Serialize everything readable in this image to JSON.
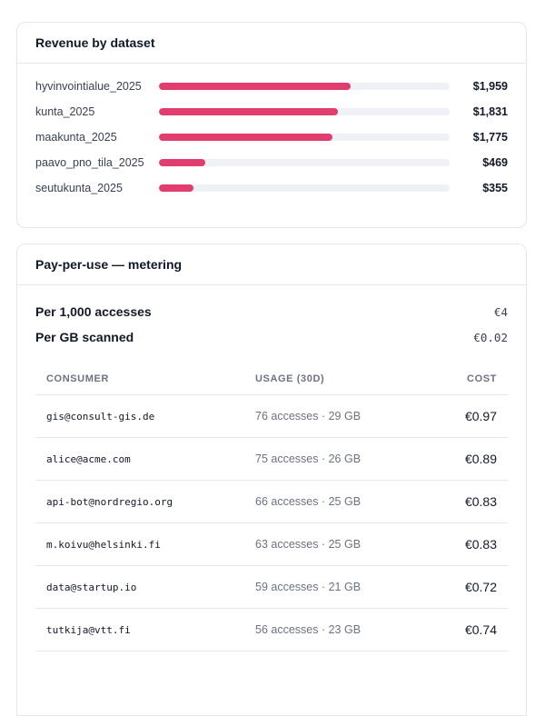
{
  "revenue": {
    "title": "Revenue by dataset",
    "rows": [
      {
        "label": "hyvinvointialue_2025",
        "value": "$1,959",
        "fill_fraction": 0.66
      },
      {
        "label": "kunta_2025",
        "value": "$1,831",
        "fill_fraction": 0.617
      },
      {
        "label": "maakunta_2025",
        "value": "$1,775",
        "fill_fraction": 0.598
      },
      {
        "label": "paavo_pno_tila_2025",
        "value": "$469",
        "fill_fraction": 0.158
      },
      {
        "label": "seutukunta_2025",
        "value": "$355",
        "fill_fraction": 0.12
      }
    ],
    "bar_color": "#e23d6f"
  },
  "metering": {
    "title": "Pay-per-use — metering",
    "prices": [
      {
        "label": "Per 1,000 accesses",
        "value": "€4"
      },
      {
        "label": "Per GB scanned",
        "value": "€0.02"
      }
    ],
    "table": {
      "headers": {
        "consumer": "CONSUMER",
        "usage": "USAGE (30D)",
        "cost": "COST"
      },
      "rows": [
        {
          "consumer": "gis@consult-gis.de",
          "usage": "76 accesses · 29 GB",
          "cost": "€0.97"
        },
        {
          "consumer": "alice@acme.com",
          "usage": "75 accesses · 26 GB",
          "cost": "€0.89"
        },
        {
          "consumer": "api-bot@nordregio.org",
          "usage": "66 accesses · 25 GB",
          "cost": "€0.83"
        },
        {
          "consumer": "m.koivu@helsinki.fi",
          "usage": "63 accesses · 25 GB",
          "cost": "€0.83"
        },
        {
          "consumer": "data@startup.io",
          "usage": "59 accesses · 21 GB",
          "cost": "€0.72"
        },
        {
          "consumer": "tutkija@vtt.fi",
          "usage": "56 accesses · 23 GB",
          "cost": "€0.74"
        }
      ]
    }
  }
}
